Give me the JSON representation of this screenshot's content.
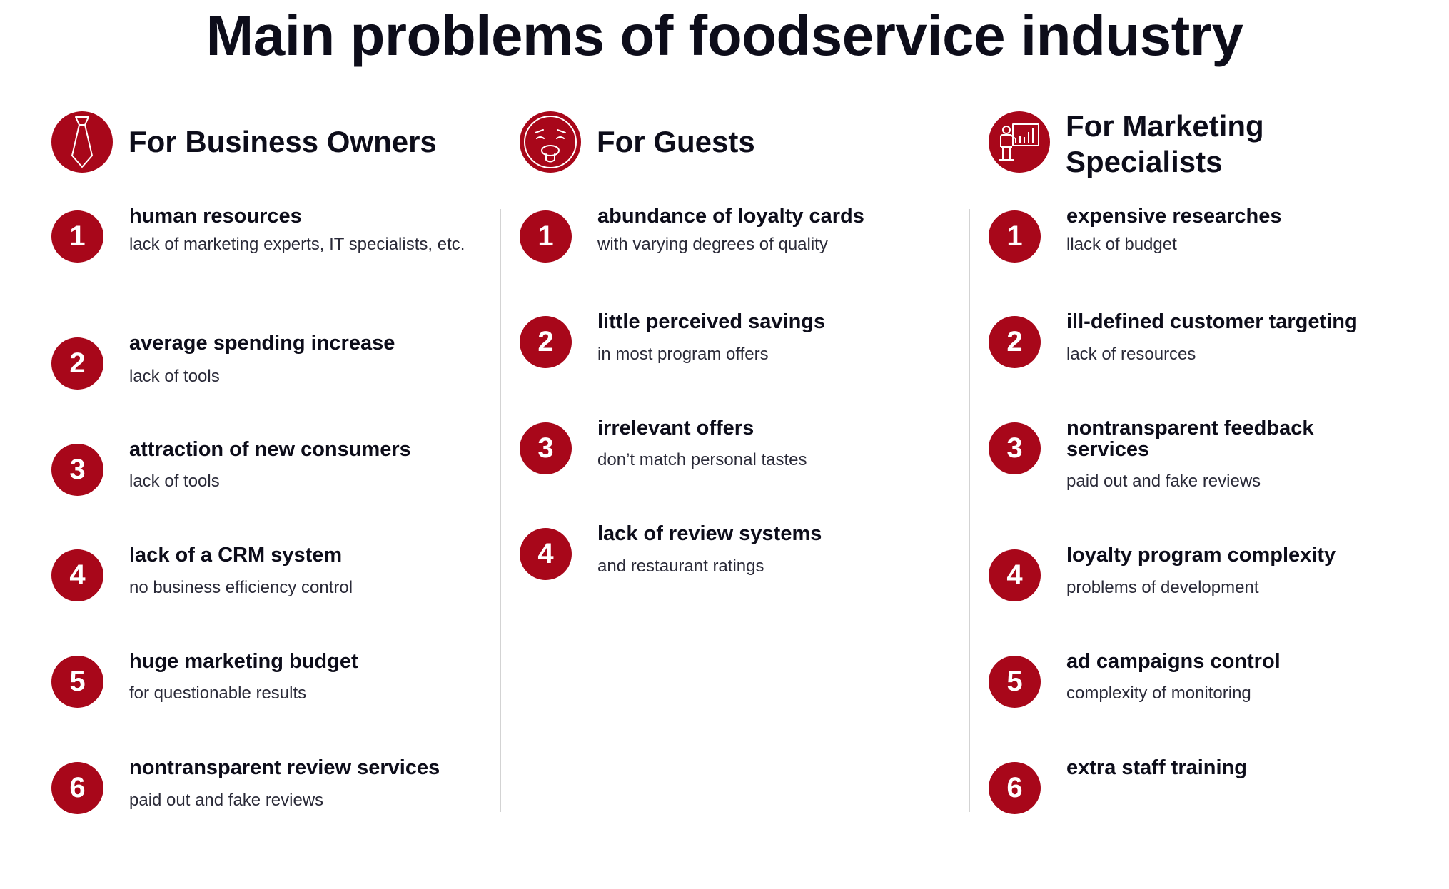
{
  "title": "Main problems of foodservice industry",
  "colors": {
    "accent": "#a8071a",
    "text": "#0d0d1a",
    "divider": "#d3d3d3"
  },
  "columns": [
    {
      "heading": "For Business Owners",
      "icon": "necktie-icon",
      "items": [
        {
          "number": "1",
          "title": "human resources",
          "description": "lack of marketing experts, IT specialists, etc."
        },
        {
          "number": "2",
          "title": "average spending increase",
          "description": "lack of tools"
        },
        {
          "number": "3",
          "title": "attraction of new consumers",
          "description": "lack of tools"
        },
        {
          "number": "4",
          "title": "lack of a CRM system",
          "description": "no business efficiency control"
        },
        {
          "number": "5",
          "title": "huge marketing budget",
          "description": "for questionable results"
        },
        {
          "number": "6",
          "title": "nontransparent review services",
          "description": "paid out and fake reviews"
        }
      ]
    },
    {
      "heading": "For Guests",
      "icon": "disgusted-face-icon",
      "items": [
        {
          "number": "1",
          "title": "abundance of loyalty cards",
          "description": "with varying degrees of quality"
        },
        {
          "number": "2",
          "title": "little perceived savings",
          "description": "in most program offers"
        },
        {
          "number": "3",
          "title": "irrelevant offers",
          "description": "don’t match personal tastes"
        },
        {
          "number": "4",
          "title": "lack of review systems",
          "description": "and restaurant ratings"
        }
      ]
    },
    {
      "heading": "For Marketing Specialists",
      "icon": "presentation-icon",
      "items": [
        {
          "number": "1",
          "title": "expensive researches",
          "description": "llack of budget"
        },
        {
          "number": "2",
          "title": "ill-defined customer targeting",
          "description": "lack of resources"
        },
        {
          "number": "3",
          "title": "nontransparent feedback services",
          "description": "paid out and fake reviews"
        },
        {
          "number": "4",
          "title": "loyalty program complexity",
          "description": "problems of development"
        },
        {
          "number": "5",
          "title": "ad campaigns control",
          "description": "complexity of monitoring"
        },
        {
          "number": "6",
          "title": "extra staff training",
          "description": ""
        }
      ]
    }
  ]
}
